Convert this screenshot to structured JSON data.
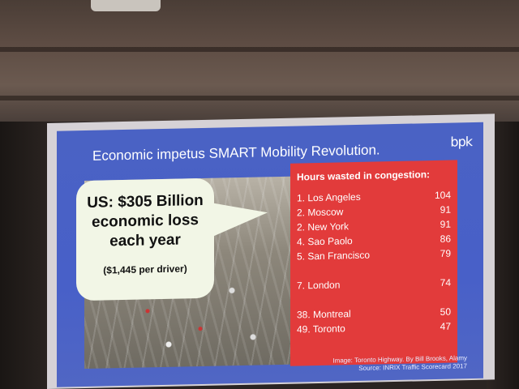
{
  "slide": {
    "title": "Economic impetus SMART Mobility Revolution.",
    "logo_text": "bpk",
    "bubble": {
      "line1": "US: $305 Billion",
      "line2": "economic loss",
      "line3": "each year",
      "sub": "($1,445 per driver)"
    },
    "table": {
      "title": "Hours wasted in congestion:",
      "rows": [
        {
          "city": "1. Los Angeles",
          "hours": "104"
        },
        {
          "city": "2. Moscow",
          "hours": "91"
        },
        {
          "city": "2. New York",
          "hours": "91"
        },
        {
          "city": "4. Sao Paolo",
          "hours": "86"
        },
        {
          "city": "5. San Francisco",
          "hours": "79"
        },
        {
          "city": "7. London",
          "hours": "74"
        },
        {
          "city": "38. Montreal",
          "hours": "50"
        },
        {
          "city": "49. Toronto",
          "hours": "47"
        }
      ]
    },
    "caption": {
      "line1": "Image: Toronto Highway. By Bill Brooks, Alamy",
      "line2": "Source: INRIX Traffic Scorecard 2017"
    }
  },
  "colors": {
    "slide_background": "#4a62c4",
    "table_background": "#e23b3b",
    "bubble_background": "#f2f6e6"
  },
  "icons": [
    "projector-icon",
    "bpk-logo-icon"
  ]
}
